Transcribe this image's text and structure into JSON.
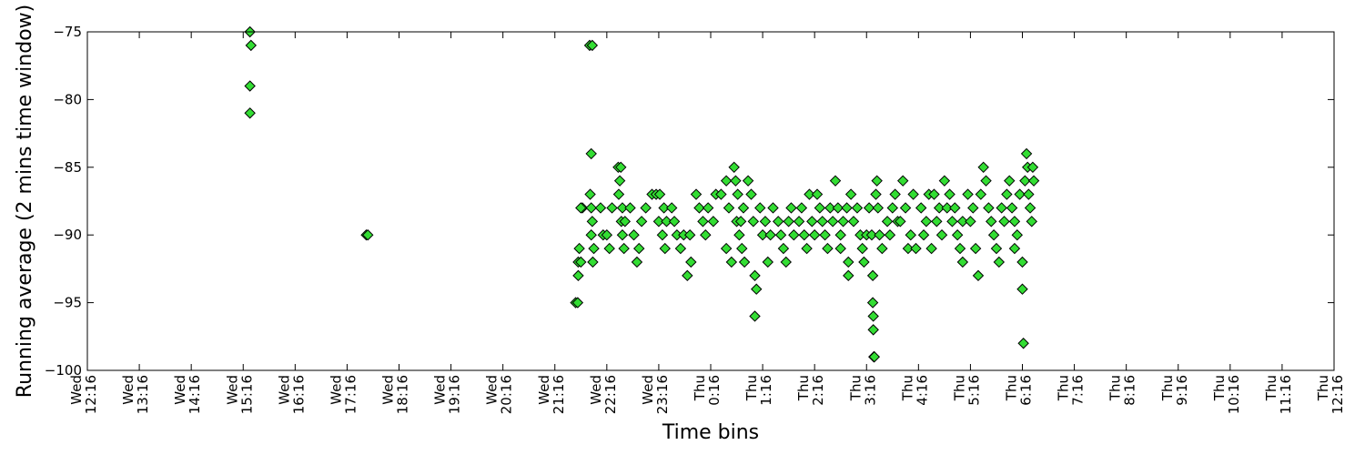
{
  "chart_data": {
    "type": "scatter",
    "title": "",
    "xlabel": "Time bins",
    "ylabel": "Running average (2 mins time window)",
    "ylim": [
      -100,
      -75
    ],
    "yticks": [
      -100,
      -95,
      -90,
      -85,
      -80,
      -75
    ],
    "ytick_labels": [
      "−100",
      "−95",
      "−90",
      "−85",
      "−80",
      "−75"
    ],
    "xlim_hours": [
      0,
      24
    ],
    "xticks": [
      {
        "day": "Wed",
        "time": "12:16"
      },
      {
        "day": "Wed",
        "time": "13:16"
      },
      {
        "day": "Wed",
        "time": "14:16"
      },
      {
        "day": "Wed",
        "time": "15:16"
      },
      {
        "day": "Wed",
        "time": "16:16"
      },
      {
        "day": "Wed",
        "time": "17:16"
      },
      {
        "day": "Wed",
        "time": "18:16"
      },
      {
        "day": "Wed",
        "time": "19:16"
      },
      {
        "day": "Wed",
        "time": "20:16"
      },
      {
        "day": "Wed",
        "time": "21:16"
      },
      {
        "day": "Wed",
        "time": "22:16"
      },
      {
        "day": "Wed",
        "time": "23:16"
      },
      {
        "day": "Thu",
        "time": "0:16"
      },
      {
        "day": "Thu",
        "time": "1:16"
      },
      {
        "day": "Thu",
        "time": "2:16"
      },
      {
        "day": "Thu",
        "time": "3:16"
      },
      {
        "day": "Thu",
        "time": "4:16"
      },
      {
        "day": "Thu",
        "time": "5:16"
      },
      {
        "day": "Thu",
        "time": "6:16"
      },
      {
        "day": "Thu",
        "time": "7:16"
      },
      {
        "day": "Thu",
        "time": "8:16"
      },
      {
        "day": "Thu",
        "time": "9:16"
      },
      {
        "day": "Thu",
        "time": "10:16"
      },
      {
        "day": "Thu",
        "time": "11:16"
      },
      {
        "day": "Thu",
        "time": "12:16"
      }
    ],
    "marker": {
      "shape": "diamond",
      "fill": "#33dd33",
      "edge": "#000000"
    },
    "grid": false,
    "series": [
      {
        "points": [
          [
            3.13,
            -75
          ],
          [
            3.15,
            -76
          ],
          [
            3.13,
            -79
          ],
          [
            3.13,
            -81
          ],
          [
            5.37,
            -90
          ],
          [
            5.4,
            -90
          ],
          [
            9.4,
            -95
          ],
          [
            9.44,
            -95
          ],
          [
            9.45,
            -93
          ],
          [
            9.47,
            -91
          ],
          [
            9.45,
            -92
          ],
          [
            9.5,
            -92
          ],
          [
            9.53,
            -88
          ],
          [
            9.5,
            -88
          ],
          [
            9.67,
            -76
          ],
          [
            9.72,
            -76
          ],
          [
            9.7,
            -84
          ],
          [
            9.68,
            -87
          ],
          [
            9.7,
            -88
          ],
          [
            9.72,
            -89
          ],
          [
            9.7,
            -90
          ],
          [
            9.73,
            -92
          ],
          [
            9.75,
            -91
          ],
          [
            9.88,
            -88
          ],
          [
            9.93,
            -90
          ],
          [
            10.0,
            -90
          ],
          [
            10.05,
            -91
          ],
          [
            10.1,
            -88
          ],
          [
            10.22,
            -85
          ],
          [
            10.27,
            -85
          ],
          [
            10.25,
            -86
          ],
          [
            10.23,
            -87
          ],
          [
            10.3,
            -88
          ],
          [
            10.28,
            -89
          ],
          [
            10.3,
            -90
          ],
          [
            10.33,
            -91
          ],
          [
            10.35,
            -89
          ],
          [
            10.45,
            -88
          ],
          [
            10.52,
            -90
          ],
          [
            10.58,
            -92
          ],
          [
            10.62,
            -91
          ],
          [
            10.67,
            -89
          ],
          [
            10.75,
            -88
          ],
          [
            10.87,
            -87
          ],
          [
            10.95,
            -87
          ],
          [
            11.02,
            -87
          ],
          [
            11.1,
            -88
          ],
          [
            11.0,
            -89
          ],
          [
            11.07,
            -90
          ],
          [
            11.12,
            -91
          ],
          [
            11.15,
            -89
          ],
          [
            11.25,
            -88
          ],
          [
            11.3,
            -89
          ],
          [
            11.35,
            -90
          ],
          [
            11.42,
            -91
          ],
          [
            11.48,
            -90
          ],
          [
            11.55,
            -93
          ],
          [
            11.62,
            -92
          ],
          [
            11.6,
            -90
          ],
          [
            11.72,
            -87
          ],
          [
            11.78,
            -88
          ],
          [
            11.85,
            -89
          ],
          [
            11.9,
            -90
          ],
          [
            11.95,
            -88
          ],
          [
            12.05,
            -89
          ],
          [
            12.1,
            -87
          ],
          [
            12.2,
            -87
          ],
          [
            12.3,
            -86
          ],
          [
            12.35,
            -88
          ],
          [
            12.45,
            -85
          ],
          [
            12.5,
            -89
          ],
          [
            12.55,
            -90
          ],
          [
            12.6,
            -91
          ],
          [
            12.65,
            -92
          ],
          [
            12.3,
            -91
          ],
          [
            12.4,
            -92
          ],
          [
            12.48,
            -86
          ],
          [
            12.52,
            -87
          ],
          [
            12.58,
            -89
          ],
          [
            12.63,
            -88
          ],
          [
            12.72,
            -86
          ],
          [
            12.78,
            -87
          ],
          [
            12.82,
            -89
          ],
          [
            12.85,
            -93
          ],
          [
            12.88,
            -94
          ],
          [
            12.85,
            -96
          ],
          [
            12.95,
            -88
          ],
          [
            13.0,
            -90
          ],
          [
            13.05,
            -89
          ],
          [
            13.1,
            -92
          ],
          [
            13.15,
            -90
          ],
          [
            13.2,
            -88
          ],
          [
            13.3,
            -89
          ],
          [
            13.35,
            -90
          ],
          [
            13.4,
            -91
          ],
          [
            13.45,
            -92
          ],
          [
            13.5,
            -89
          ],
          [
            13.55,
            -88
          ],
          [
            13.6,
            -90
          ],
          [
            13.7,
            -89
          ],
          [
            13.75,
            -88
          ],
          [
            13.8,
            -90
          ],
          [
            13.85,
            -91
          ],
          [
            13.9,
            -87
          ],
          [
            13.95,
            -89
          ],
          [
            14.0,
            -90
          ],
          [
            14.05,
            -87
          ],
          [
            14.1,
            -88
          ],
          [
            14.15,
            -89
          ],
          [
            14.2,
            -90
          ],
          [
            14.25,
            -91
          ],
          [
            14.3,
            -88
          ],
          [
            14.35,
            -89
          ],
          [
            14.4,
            -86
          ],
          [
            14.45,
            -88
          ],
          [
            14.5,
            -90
          ],
          [
            14.5,
            -91
          ],
          [
            14.55,
            -89
          ],
          [
            14.62,
            -88
          ],
          [
            14.65,
            -93
          ],
          [
            14.65,
            -92
          ],
          [
            14.7,
            -87
          ],
          [
            14.75,
            -89
          ],
          [
            14.82,
            -88
          ],
          [
            14.88,
            -90
          ],
          [
            14.92,
            -91
          ],
          [
            14.95,
            -92
          ],
          [
            15.0,
            -90
          ],
          [
            15.05,
            -88
          ],
          [
            15.1,
            -90
          ],
          [
            15.12,
            -93
          ],
          [
            15.12,
            -95
          ],
          [
            15.13,
            -96
          ],
          [
            15.13,
            -97
          ],
          [
            15.14,
            -99
          ],
          [
            15.15,
            -99
          ],
          [
            15.18,
            -87
          ],
          [
            15.2,
            -86
          ],
          [
            15.22,
            -88
          ],
          [
            15.25,
            -90
          ],
          [
            15.3,
            -91
          ],
          [
            15.4,
            -89
          ],
          [
            15.45,
            -90
          ],
          [
            15.5,
            -88
          ],
          [
            15.55,
            -87
          ],
          [
            15.6,
            -89
          ],
          [
            15.65,
            -89
          ],
          [
            15.7,
            -86
          ],
          [
            15.75,
            -88
          ],
          [
            15.8,
            -91
          ],
          [
            15.85,
            -90
          ],
          [
            15.9,
            -87
          ],
          [
            15.95,
            -91
          ],
          [
            16.05,
            -88
          ],
          [
            16.1,
            -90
          ],
          [
            16.15,
            -89
          ],
          [
            16.2,
            -87
          ],
          [
            16.25,
            -91
          ],
          [
            16.3,
            -87
          ],
          [
            16.35,
            -89
          ],
          [
            16.4,
            -88
          ],
          [
            16.45,
            -90
          ],
          [
            16.5,
            -86
          ],
          [
            16.55,
            -88
          ],
          [
            16.6,
            -87
          ],
          [
            16.65,
            -89
          ],
          [
            16.7,
            -88
          ],
          [
            16.75,
            -90
          ],
          [
            16.8,
            -91
          ],
          [
            16.85,
            -92
          ],
          [
            16.85,
            -89
          ],
          [
            16.95,
            -87
          ],
          [
            17.0,
            -89
          ],
          [
            17.05,
            -88
          ],
          [
            17.1,
            -91
          ],
          [
            17.15,
            -93
          ],
          [
            17.2,
            -87
          ],
          [
            17.25,
            -85
          ],
          [
            17.3,
            -86
          ],
          [
            17.35,
            -88
          ],
          [
            17.4,
            -89
          ],
          [
            17.45,
            -90
          ],
          [
            17.5,
            -91
          ],
          [
            17.55,
            -92
          ],
          [
            17.6,
            -88
          ],
          [
            17.65,
            -89
          ],
          [
            17.7,
            -87
          ],
          [
            17.75,
            -86
          ],
          [
            17.8,
            -88
          ],
          [
            17.85,
            -91
          ],
          [
            17.85,
            -89
          ],
          [
            17.9,
            -90
          ],
          [
            17.95,
            -87
          ],
          [
            18.0,
            -92
          ],
          [
            18.0,
            -94
          ],
          [
            18.02,
            -98
          ],
          [
            18.05,
            -86
          ],
          [
            18.08,
            -84
          ],
          [
            18.1,
            -85
          ],
          [
            18.12,
            -87
          ],
          [
            18.15,
            -88
          ],
          [
            18.18,
            -89
          ],
          [
            18.2,
            -85
          ],
          [
            18.22,
            -86
          ]
        ]
      }
    ]
  }
}
